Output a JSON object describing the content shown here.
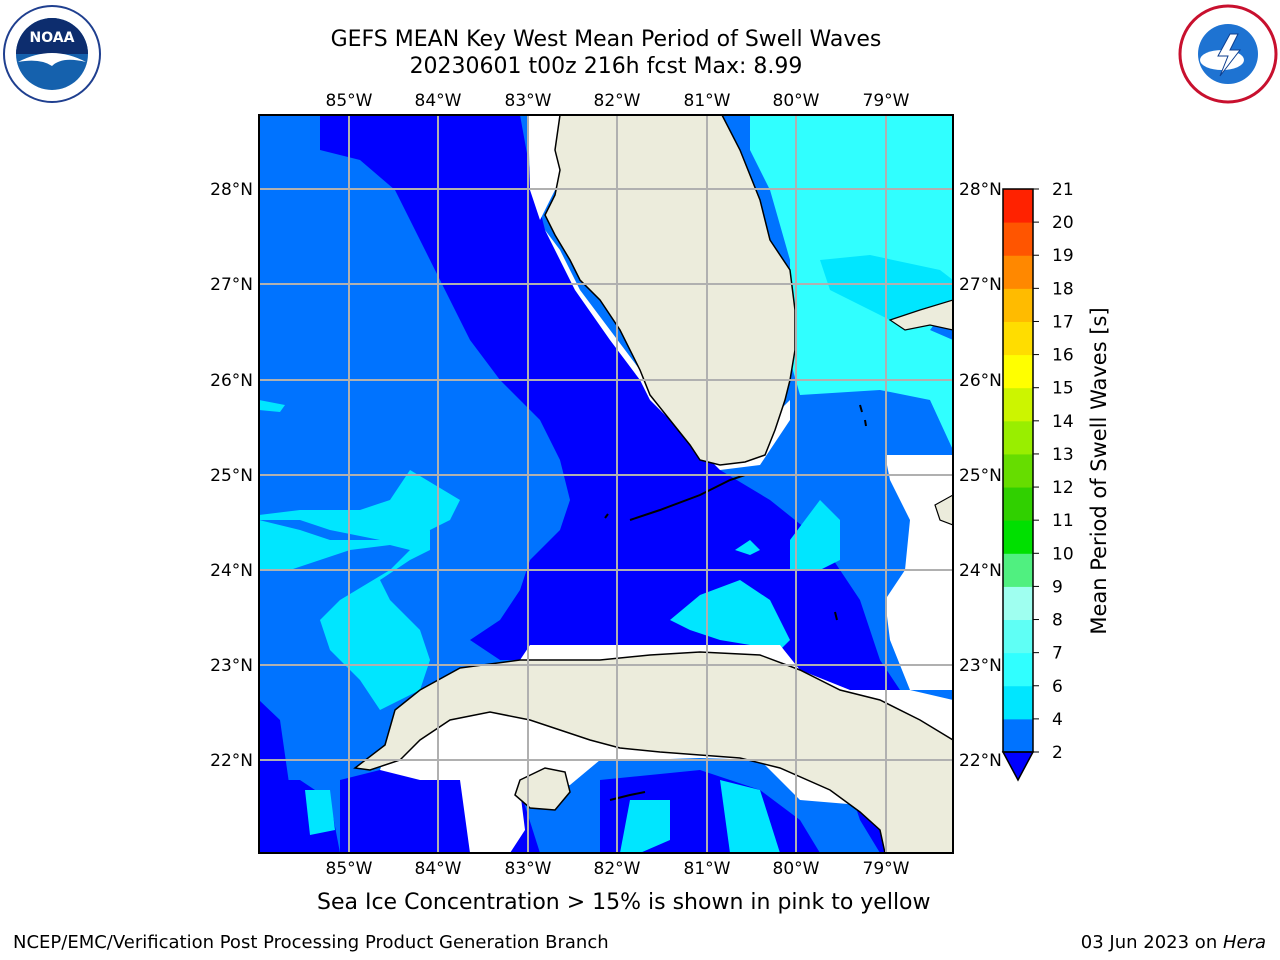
{
  "header": {
    "title_line1": "GEFS MEAN Key West Mean Period of Swell Waves",
    "title_line2": "20230601 t00z 216h fcst   Max: 8.99"
  },
  "logos": {
    "left": "noaa-logo",
    "right": "nws-logo"
  },
  "map": {
    "lon_labels": [
      "85°W",
      "84°W",
      "83°W",
      "82°W",
      "81°W",
      "80°W",
      "79°W"
    ],
    "lat_labels": [
      "28°N",
      "27°N",
      "26°N",
      "25°N",
      "24°N",
      "23°N",
      "22°N"
    ],
    "lon_range": [
      -86.0,
      -78.3
    ],
    "lat_range": [
      21.0,
      28.75
    ],
    "land_color": "#ececdc",
    "grid": true
  },
  "colorbar": {
    "label": "Mean Period of Swell Waves [s]",
    "ticks": [
      "2",
      "4",
      "6",
      "7",
      "8",
      "9",
      "10",
      "11",
      "12",
      "13",
      "14",
      "15",
      "16",
      "17",
      "18",
      "19",
      "20",
      "21"
    ],
    "colors": [
      "#0000ff",
      "#0073ff",
      "#00e6ff",
      "#30ffff",
      "#5ffff5",
      "#9ffff0",
      "#50f080",
      "#00e000",
      "#30d000",
      "#66dd00",
      "#99ee00",
      "#ccf500",
      "#ffff00",
      "#ffdd00",
      "#ffbb00",
      "#ff8800",
      "#ff5500",
      "#ff2200",
      "#ff0000"
    ]
  },
  "subtitle": "Sea Ice Concentration > 15% is shown in pink to yellow",
  "footer": {
    "left": "NCEP/EMC/Verification Post Processing Product Generation Branch",
    "right_date": "03 Jun 2023 on ",
    "right_host": "Hera"
  }
}
